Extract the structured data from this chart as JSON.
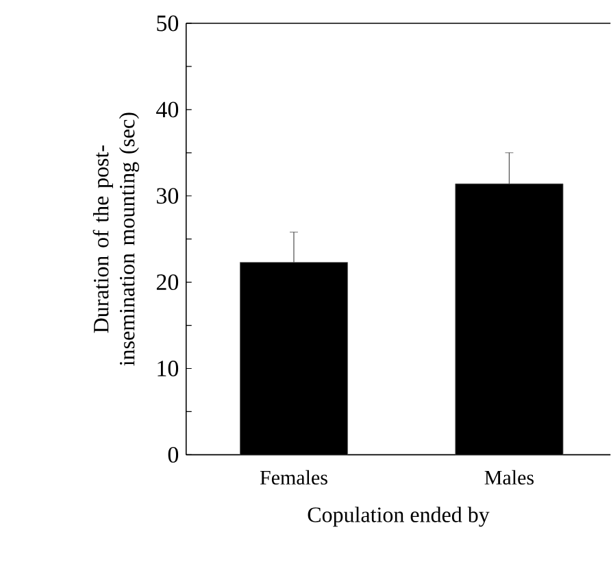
{
  "chart_data": {
    "type": "bar",
    "xlabel": "Copulation ended by",
    "ylabel": "Duration of the post-insemination mounting (sec)",
    "categories": [
      "Females",
      "Males"
    ],
    "values": [
      22.3,
      31.4
    ],
    "errors": [
      3.5,
      3.6
    ],
    "color": "#000000",
    "ylim": [
      0,
      50
    ],
    "yticks": [
      0,
      {
        "value": 5,
        "label": null
      },
      10,
      {
        "value": 15,
        "label": null
      },
      20,
      {
        "value": 25,
        "label": null
      },
      30,
      {
        "value": 35,
        "label": null
      },
      40,
      {
        "value": 45,
        "label": null
      },
      50
    ],
    "grid": false
  }
}
